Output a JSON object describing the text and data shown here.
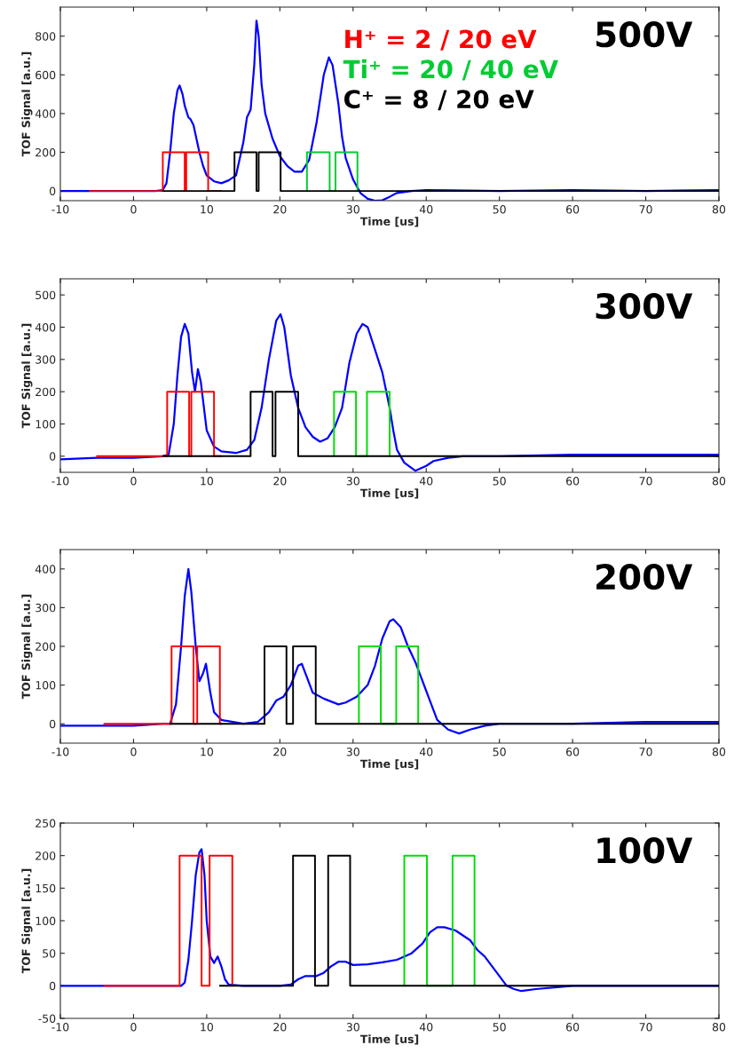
{
  "chart_data": [
    {
      "type": "line",
      "xlabel": "Time [us]",
      "ylabel": "TOF Signal [a.u.]",
      "xlim": [
        -10,
        80
      ],
      "ylim": [
        -50,
        950
      ],
      "xticks": [
        -10,
        0,
        10,
        20,
        30,
        40,
        50,
        60,
        70,
        80
      ],
      "yticks": [
        0,
        200,
        400,
        600,
        800
      ],
      "grid": false,
      "legend": "top right",
      "marker": "none",
      "line_style": "solid",
      "annotations": [
        "500V"
      ],
      "series": [
        {
          "color": "#0000ff",
          "x": [
            -10,
            3,
            4,
            4.5,
            5,
            5.5,
            6,
            6.3,
            6.7,
            7,
            7.5,
            7.8,
            8.2,
            9,
            9.5,
            10,
            11,
            12,
            13,
            14,
            15,
            15.5,
            16,
            16.5,
            16.8,
            17.1,
            17.5,
            18,
            19,
            20,
            21,
            22,
            23,
            24,
            25,
            26,
            26.7,
            27.2,
            28,
            28.5,
            29,
            30,
            31,
            32,
            33,
            34,
            35,
            36,
            38,
            40,
            50,
            60,
            70,
            80
          ],
          "values": [
            0,
            0,
            5,
            40,
            200,
            400,
            520,
            545,
            500,
            440,
            380,
            370,
            340,
            200,
            130,
            80,
            50,
            40,
            55,
            80,
            250,
            380,
            420,
            650,
            880,
            800,
            550,
            400,
            270,
            180,
            130,
            100,
            100,
            160,
            350,
            600,
            690,
            650,
            450,
            280,
            170,
            60,
            -10,
            -40,
            -50,
            -48,
            -30,
            -10,
            0,
            5,
            0,
            5,
            0,
            5
          ]
        },
        {
          "name": "H⁺ = 2 / 20 eV",
          "color": "#ff0000",
          "x": [
            -6,
            4,
            4,
            7,
            7,
            7.2,
            7.2,
            10.2,
            10.2,
            12
          ],
          "values": [
            0,
            0,
            200,
            200,
            0,
            0,
            200,
            200,
            0,
            0
          ]
        },
        {
          "name": "Ti⁺ = 20 / 40 eV",
          "color": "#00cc33",
          "x": [
            23.7,
            23.7,
            26.8,
            26.8,
            27.6,
            27.6,
            30.6,
            30.6
          ],
          "values": [
            0,
            200,
            200,
            0,
            0,
            200,
            200,
            0
          ]
        },
        {
          "name": "C⁺ = 8 / 20 eV",
          "color": "#000000",
          "x": [
            4,
            13.8,
            13.8,
            16.8,
            16.8,
            17.1,
            17.1,
            20.1,
            20.1,
            80
          ],
          "values": [
            0,
            0,
            200,
            200,
            0,
            0,
            200,
            200,
            0,
            0
          ]
        }
      ]
    },
    {
      "type": "line",
      "xlabel": "Time [us]",
      "ylabel": "TOF Signal [a.u.]",
      "xlim": [
        -10,
        80
      ],
      "ylim": [
        -50,
        550
      ],
      "xticks": [
        -10,
        0,
        10,
        20,
        30,
        40,
        50,
        60,
        70,
        80
      ],
      "yticks": [
        0,
        100,
        200,
        300,
        400,
        500
      ],
      "grid": false,
      "marker": "none",
      "line_style": "solid",
      "annotations": [
        "300V"
      ],
      "series": [
        {
          "color": "#0000ff",
          "x": [
            -10,
            -5,
            0,
            4,
            4.8,
            5.5,
            6,
            6.5,
            7,
            7.5,
            8,
            8.4,
            8.8,
            9.2,
            10,
            11,
            12,
            14,
            15.5,
            16.5,
            17.5,
            18.5,
            19.5,
            20.1,
            20.6,
            21.5,
            22.5,
            23.5,
            24.5,
            25.5,
            26.5,
            27.5,
            28.5,
            29.5,
            30.5,
            31.3,
            32,
            33,
            34,
            35,
            35.5,
            36,
            37,
            38.5,
            40,
            41,
            43,
            45,
            50,
            60,
            70,
            80
          ],
          "values": [
            -10,
            -5,
            -5,
            0,
            5,
            100,
            250,
            370,
            410,
            380,
            260,
            200,
            270,
            230,
            80,
            30,
            15,
            10,
            20,
            50,
            150,
            300,
            420,
            440,
            400,
            250,
            150,
            90,
            60,
            45,
            55,
            90,
            150,
            290,
            380,
            410,
            400,
            330,
            260,
            150,
            80,
            20,
            -20,
            -45,
            -30,
            -15,
            -5,
            0,
            0,
            5,
            5,
            5
          ]
        },
        {
          "color": "#ff0000",
          "x": [
            -5,
            4.6,
            4.6,
            7.6,
            7.6,
            7.9,
            7.9,
            11,
            11,
            12
          ],
          "values": [
            0,
            0,
            200,
            200,
            0,
            0,
            200,
            200,
            0,
            0
          ]
        },
        {
          "color": "#00dd00",
          "x": [
            27.4,
            27.4,
            30.4,
            30.4,
            31.9,
            31.9,
            35,
            35
          ],
          "values": [
            0,
            200,
            200,
            0,
            0,
            200,
            200,
            0
          ]
        },
        {
          "color": "#000000",
          "x": [
            4,
            16,
            16,
            19,
            19,
            19.4,
            19.4,
            22.5,
            22.5,
            80
          ],
          "values": [
            0,
            0,
            200,
            200,
            0,
            0,
            200,
            200,
            0,
            0
          ]
        }
      ]
    },
    {
      "type": "line",
      "xlabel": "Time [us]",
      "ylabel": "TOF Signal [a.u.]",
      "xlim": [
        -10,
        80
      ],
      "ylim": [
        -50,
        450
      ],
      "xticks": [
        -10,
        0,
        10,
        20,
        30,
        40,
        50,
        60,
        70,
        80
      ],
      "yticks": [
        0,
        100,
        200,
        300,
        400
      ],
      "grid": false,
      "marker": "none",
      "line_style": "solid",
      "annotations": [
        "200V"
      ],
      "series": [
        {
          "color": "#0000ff",
          "x": [
            -10,
            -5,
            0,
            4,
            5,
            5.8,
            6.5,
            7,
            7.5,
            7.9,
            8.5,
            9,
            9.5,
            9.9,
            10.5,
            11,
            12,
            15,
            17,
            18.5,
            19.5,
            20.5,
            21.5,
            22.5,
            23,
            23.5,
            24.5,
            26,
            28,
            29,
            30.5,
            32,
            33,
            34,
            35,
            35.5,
            36.5,
            37.5,
            38.5,
            39.5,
            40.5,
            41.5,
            43,
            44.5,
            46,
            48,
            50,
            60,
            70,
            80
          ],
          "values": [
            -5,
            -5,
            -5,
            0,
            0,
            50,
            200,
            330,
            400,
            340,
            200,
            110,
            130,
            155,
            80,
            30,
            10,
            0,
            5,
            30,
            60,
            70,
            100,
            150,
            155,
            130,
            80,
            65,
            50,
            55,
            70,
            100,
            150,
            220,
            265,
            270,
            250,
            200,
            160,
            110,
            60,
            10,
            -15,
            -25,
            -15,
            -5,
            0,
            0,
            5,
            5
          ]
        },
        {
          "color": "#ff0000",
          "x": [
            -4,
            5.2,
            5.2,
            8.2,
            8.2,
            8.7,
            8.7,
            11.8,
            11.8,
            12
          ],
          "values": [
            0,
            0,
            200,
            200,
            0,
            0,
            200,
            200,
            0,
            0
          ]
        },
        {
          "color": "#00dd00",
          "x": [
            30.8,
            30.8,
            33.8,
            33.8,
            35.9,
            35.9,
            38.9,
            38.9
          ],
          "values": [
            0,
            200,
            200,
            0,
            0,
            200,
            200,
            0
          ]
        },
        {
          "color": "#000000",
          "x": [
            5,
            17.9,
            17.9,
            20.9,
            20.9,
            21.8,
            21.8,
            24.9,
            24.9,
            80
          ],
          "values": [
            0,
            0,
            200,
            200,
            0,
            0,
            200,
            200,
            0,
            0
          ]
        }
      ]
    },
    {
      "type": "line",
      "xlabel": "Time [us]",
      "ylabel": "TOF Signal [a.u.]",
      "xlim": [
        -10,
        80
      ],
      "ylim": [
        -50,
        250
      ],
      "xticks": [
        -10,
        0,
        10,
        20,
        30,
        40,
        50,
        60,
        70,
        80
      ],
      "yticks": [
        -50,
        0,
        50,
        100,
        150,
        200,
        250
      ],
      "grid": false,
      "marker": "none",
      "line_style": "solid",
      "annotations": [
        "100V"
      ],
      "series": [
        {
          "color": "#0000ff",
          "x": [
            -10,
            -5,
            0,
            5,
            6.5,
            7,
            7.5,
            8,
            8.5,
            9,
            9.3,
            9.7,
            10,
            10.5,
            11,
            11.5,
            12,
            12.5,
            13,
            15,
            20,
            21.5,
            22.5,
            23.5,
            25,
            26,
            27,
            28,
            29,
            30,
            32,
            34,
            36,
            38,
            39.5,
            40.5,
            41.5,
            42.5,
            44,
            46,
            47,
            48,
            49,
            50,
            51,
            52,
            53,
            55,
            60,
            70,
            80
          ],
          "values": [
            0,
            0,
            0,
            0,
            0,
            5,
            40,
            100,
            170,
            205,
            210,
            170,
            100,
            45,
            35,
            45,
            30,
            10,
            2,
            0,
            0,
            2,
            10,
            15,
            15,
            20,
            30,
            37,
            37,
            32,
            33,
            36,
            40,
            50,
            65,
            82,
            90,
            90,
            85,
            70,
            55,
            45,
            30,
            15,
            0,
            -5,
            -8,
            -5,
            0,
            0,
            0
          ]
        },
        {
          "color": "#ff0000",
          "x": [
            -4,
            6.3,
            6.3,
            9.3,
            9.3,
            10.4,
            10.4,
            13.5,
            13.5
          ],
          "values": [
            0,
            0,
            200,
            200,
            0,
            0,
            200,
            200,
            0
          ]
        },
        {
          "color": "#00dd00",
          "x": [
            37,
            37,
            40.1,
            40.1,
            43.6,
            43.6,
            46.6,
            46.6
          ],
          "values": [
            0,
            200,
            200,
            0,
            0,
            200,
            200,
            0
          ]
        },
        {
          "color": "#000000",
          "x": [
            11.8,
            21.8,
            21.8,
            24.8,
            24.8,
            26.6,
            26.6,
            29.6,
            29.6,
            80
          ],
          "values": [
            0,
            0,
            200,
            200,
            0,
            0,
            200,
            200,
            0,
            0
          ]
        }
      ]
    }
  ]
}
